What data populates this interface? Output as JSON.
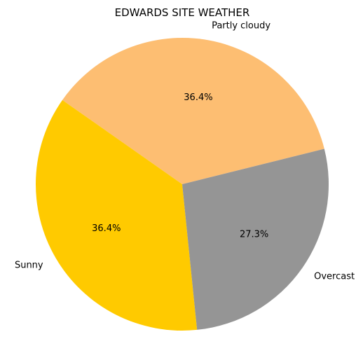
{
  "chart_data": {
    "type": "pie",
    "title": "EDWARDS SITE WEATHER",
    "categories": [
      "Partly cloudy",
      "Sunny",
      "Overcast"
    ],
    "values": [
      36.4,
      36.4,
      27.3
    ],
    "data_labels": [
      "36.4%",
      "36.4%",
      "27.3%"
    ],
    "colors": [
      "#FDBE72",
      "#FFCA00",
      "#959595"
    ],
    "start_angle_deg": 14,
    "direction": "counterclockwise",
    "legend": "none"
  }
}
